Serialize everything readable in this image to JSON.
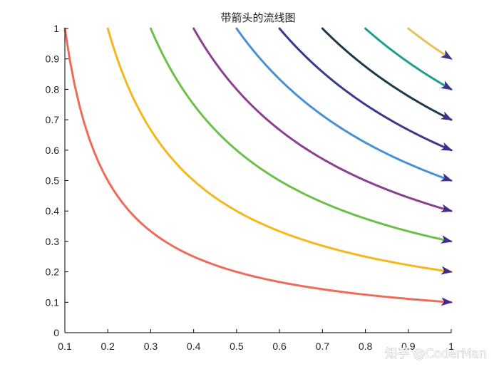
{
  "chart_data": {
    "type": "line",
    "title": "带箭头的流线图",
    "xlabel": "",
    "ylabel": "",
    "xlim": [
      0.1,
      1
    ],
    "ylim": [
      0,
      1
    ],
    "x_ticks": [
      "0.1",
      "0.2",
      "0.3",
      "0.4",
      "0.5",
      "0.6",
      "0.7",
      "0.8",
      "0.9",
      "1"
    ],
    "y_ticks": [
      "0",
      "0.1",
      "0.2",
      "0.3",
      "0.4",
      "0.5",
      "0.6",
      "0.7",
      "0.8",
      "0.9",
      "1"
    ],
    "grid": false,
    "legend": "none",
    "arrow_color": "#3f2e8c",
    "series": [
      {
        "relation": "x*y = 0.1",
        "x_start": 0.1,
        "x_end": 1,
        "color": "#ee6a5a"
      },
      {
        "relation": "x*y = 0.2",
        "x_start": 0.2,
        "x_end": 1,
        "color": "#f4b81c"
      },
      {
        "relation": "x*y = 0.3",
        "x_start": 0.3,
        "x_end": 1,
        "color": "#6cc04a"
      },
      {
        "relation": "x*y = 0.4",
        "x_start": 0.4,
        "x_end": 1,
        "color": "#8b3f8f"
      },
      {
        "relation": "x*y = 0.5",
        "x_start": 0.5,
        "x_end": 1,
        "color": "#4a8fd6"
      },
      {
        "relation": "x*y = 0.6",
        "x_start": 0.6,
        "x_end": 1,
        "color": "#3a3a8c"
      },
      {
        "relation": "x*y = 0.7",
        "x_start": 0.7,
        "x_end": 1,
        "color": "#1c3a4a"
      },
      {
        "relation": "x*y = 0.8",
        "x_start": 0.8,
        "x_end": 1,
        "color": "#1f9e8f"
      },
      {
        "relation": "x*y = 0.9",
        "x_start": 0.9,
        "x_end": 1,
        "color": "#e6c25a"
      }
    ]
  },
  "watermark": "知乎 @CoderMan"
}
